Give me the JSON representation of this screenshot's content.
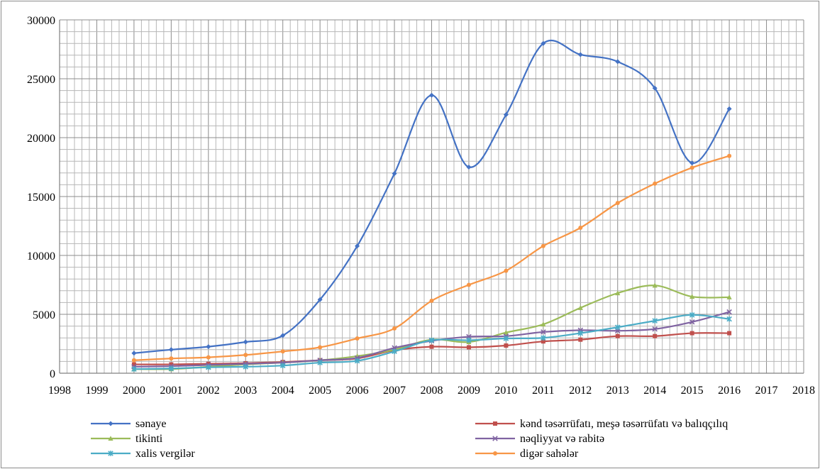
{
  "chart_data": {
    "type": "line",
    "title": "",
    "xlabel": "",
    "ylabel": "",
    "xlim": [
      1998,
      2018
    ],
    "ylim": [
      0,
      30000
    ],
    "x_ticks": [
      1998,
      1999,
      2000,
      2001,
      2002,
      2003,
      2004,
      2005,
      2006,
      2007,
      2008,
      2009,
      2010,
      2011,
      2012,
      2013,
      2014,
      2015,
      2016,
      2017,
      2018
    ],
    "y_ticks": [
      0,
      5000,
      10000,
      15000,
      20000,
      25000,
      30000
    ],
    "grid": true,
    "legend_position": "bottom",
    "x": [
      2000,
      2001,
      2002,
      2003,
      2004,
      2005,
      2006,
      2007,
      2008,
      2009,
      2010,
      2011,
      2012,
      2013,
      2014,
      2015,
      2016
    ],
    "series": [
      {
        "name": "sənaye",
        "color": "#4472c4",
        "marker": "diamond",
        "values": [
          1700,
          2000,
          2250,
          2650,
          3200,
          6250,
          10800,
          16950,
          23600,
          17500,
          21950,
          28000,
          27050,
          26450,
          24200,
          17850,
          22450
        ]
      },
      {
        "name": "kənd təsərrüfatı, meşə təsərrüfatı və balıqçılıq",
        "color": "#c0504d",
        "marker": "square",
        "values": [
          750,
          750,
          800,
          850,
          950,
          1100,
          1250,
          1950,
          2250,
          2200,
          2350,
          2700,
          2850,
          3150,
          3150,
          3400,
          3400
        ]
      },
      {
        "name": "tikinti",
        "color": "#9bbb59",
        "marker": "triangle",
        "values": [
          350,
          350,
          550,
          750,
          900,
          1100,
          1450,
          2000,
          2850,
          2650,
          3450,
          4150,
          5550,
          6800,
          7450,
          6500,
          6450
        ]
      },
      {
        "name": "nəqliyyat və rabitə",
        "color": "#8064a2",
        "marker": "x",
        "values": [
          550,
          600,
          700,
          800,
          900,
          1100,
          1300,
          2150,
          2750,
          3100,
          3150,
          3500,
          3650,
          3600,
          3750,
          4350,
          5200
        ]
      },
      {
        "name": "xalis vergilər",
        "color": "#4bacc6",
        "marker": "asterisk",
        "values": [
          350,
          400,
          500,
          550,
          650,
          900,
          1050,
          1850,
          2800,
          2800,
          2950,
          3000,
          3400,
          3900,
          4450,
          4950,
          4600
        ]
      },
      {
        "name": "digər sahələr",
        "color": "#f79646",
        "marker": "circle",
        "values": [
          1100,
          1250,
          1350,
          1550,
          1850,
          2200,
          2950,
          3800,
          6150,
          7500,
          8700,
          10800,
          12350,
          14450,
          16100,
          17450,
          18450
        ]
      }
    ],
    "legend_layout": [
      [
        0,
        1
      ],
      [
        2,
        3
      ],
      [
        4,
        5
      ]
    ]
  }
}
